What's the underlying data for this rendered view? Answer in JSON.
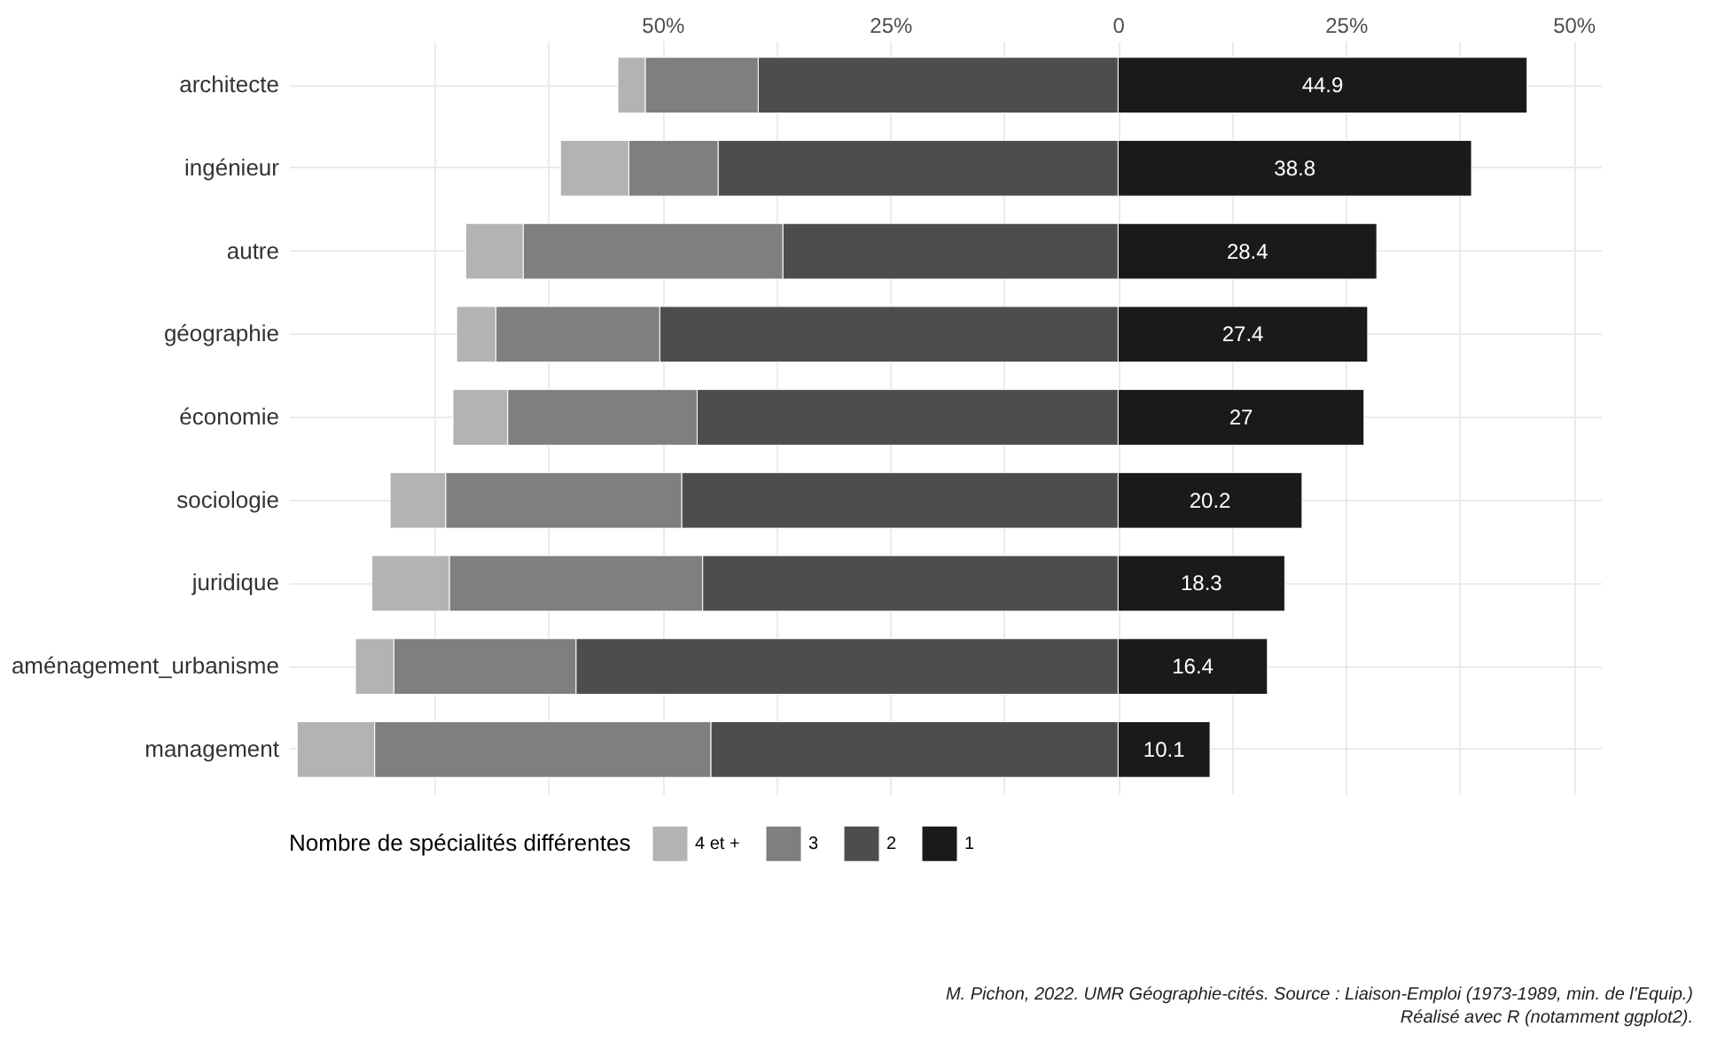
{
  "chart_data": {
    "type": "bar",
    "orientation": "horizontal",
    "stacked": true,
    "legend_title": "Nombre de spécialités différentes",
    "legend": "bottom",
    "grid": true,
    "categories": [
      "architecte",
      "ingénieur",
      "autre",
      "géographie",
      "économie",
      "sociologie",
      "juridique",
      "aménagement_urbanisme",
      "management"
    ],
    "xlim": [
      -91,
      53
    ],
    "xticks": [
      {
        "value": -75,
        "label": null
      },
      {
        "value": -62.5,
        "label": null
      },
      {
        "value": -50,
        "label": "50%"
      },
      {
        "value": -37.5,
        "label": null
      },
      {
        "value": -25,
        "label": "25%"
      },
      {
        "value": -12.5,
        "label": null
      },
      0,
      {
        "value": 12.5,
        "label": null
      },
      {
        "value": 25,
        "label": "25%"
      },
      {
        "value": 37.5,
        "label": null
      },
      {
        "value": 50,
        "label": "50%"
      }
    ],
    "series": [
      {
        "name": "1",
        "color": "#1a1a1a",
        "values": [
          44.9,
          38.8,
          28.4,
          27.4,
          27,
          20.2,
          18.3,
          16.4,
          10.1
        ],
        "value_labels": [
          "44.9",
          "38.8",
          "28.4",
          "27.4",
          "27",
          "20.2",
          "18.3",
          "16.4",
          "10.1"
        ]
      },
      {
        "name": "2",
        "color": "#4d4d4d",
        "values": [
          -39.5,
          -43.9,
          -36.8,
          -50.3,
          -46.2,
          -47.9,
          -45.6,
          -59.5,
          -44.7
        ]
      },
      {
        "name": "3",
        "color": "#7f7f7f",
        "values": [
          -12.4,
          -9.8,
          -28.5,
          -18.0,
          -20.8,
          -25.9,
          -27.8,
          -20.0,
          -36.9
        ]
      },
      {
        "name": "4 et +",
        "color": "#b3b3b3",
        "values": [
          -3.0,
          -7.5,
          -6.3,
          -4.3,
          -6.0,
          -6.1,
          -8.5,
          -4.2,
          -8.5
        ]
      }
    ],
    "annotations": [
      "M. Pichon, 2022. UMR Géographie-cités. Source : Liaison-Emploi (1973-1989, min. de l'Equip.)",
      "Réalisé avec R (notamment ggplot2)."
    ]
  }
}
